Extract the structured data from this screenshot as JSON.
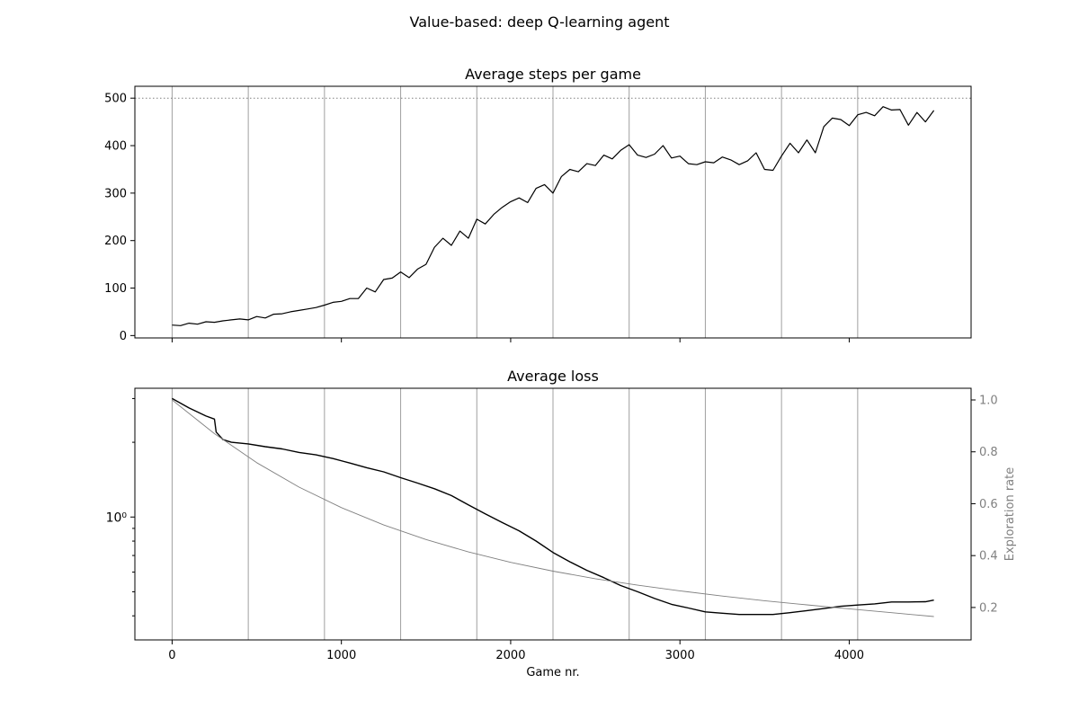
{
  "figure": {
    "suptitle": "Value-based: deep Q-learning agent"
  },
  "chart_data": [
    {
      "type": "line",
      "title": "Average steps per game",
      "xlabel": "",
      "ylabel": "",
      "xlim": [
        -220,
        4720
      ],
      "ylim": [
        -5,
        525
      ],
      "yticks": [
        0,
        100,
        200,
        300,
        400,
        500
      ],
      "vlines": [
        0,
        450,
        900,
        1350,
        1800,
        2250,
        2700,
        3150,
        3600,
        4050
      ],
      "hline": 500,
      "series": [
        {
          "color": "#000000",
          "x": [
            0,
            50,
            100,
            150,
            200,
            250,
            300,
            350,
            400,
            450,
            500,
            550,
            600,
            650,
            700,
            750,
            800,
            850,
            900,
            950,
            1000,
            1050,
            1100,
            1150,
            1200,
            1250,
            1300,
            1350,
            1400,
            1450,
            1500,
            1550,
            1600,
            1650,
            1700,
            1750,
            1800,
            1850,
            1900,
            1950,
            2000,
            2050,
            2100,
            2150,
            2200,
            2250,
            2300,
            2350,
            2400,
            2450,
            2500,
            2550,
            2600,
            2650,
            2700,
            2750,
            2800,
            2850,
            2900,
            2950,
            3000,
            3050,
            3100,
            3150,
            3200,
            3250,
            3300,
            3350,
            3400,
            3450,
            3500,
            3550,
            3600,
            3650,
            3700,
            3750,
            3800,
            3850,
            3900,
            3950,
            4000,
            4050,
            4100,
            4150,
            4200,
            4250,
            4300,
            4350,
            4400,
            4450,
            4500
          ],
          "y": [
            22,
            21,
            26,
            24,
            29,
            28,
            31,
            33,
            35,
            33,
            40,
            37,
            45,
            46,
            50,
            53,
            56,
            59,
            64,
            70,
            72,
            78,
            78,
            100,
            92,
            118,
            121,
            134,
            122,
            140,
            150,
            186,
            205,
            190,
            220,
            205,
            245,
            235,
            255,
            270,
            282,
            290,
            280,
            310,
            318,
            300,
            335,
            350,
            345,
            362,
            358,
            380,
            372,
            390,
            402,
            380,
            375,
            382,
            400,
            374,
            378,
            362,
            360,
            366,
            364,
            376,
            370,
            360,
            368,
            385,
            350,
            348,
            378,
            405,
            385,
            412,
            385,
            440,
            458,
            455,
            442,
            465,
            470,
            463,
            482,
            475,
            476,
            443,
            470,
            450,
            474
          ]
        }
      ]
    },
    {
      "type": "line",
      "title": "Average loss",
      "xlabel": "Game nr.",
      "ylabel": "",
      "yscale": "log",
      "xlim": [
        -220,
        4720
      ],
      "ylim": [
        0.32,
        3.3
      ],
      "xticks": [
        0,
        1000,
        2000,
        3000,
        4000
      ],
      "yticks": [
        1
      ],
      "ytick_labels": [
        "10⁰"
      ],
      "y2label": "Exploration rate",
      "y2lim": [
        0.075,
        1.045
      ],
      "y2ticks": [
        0.2,
        0.4,
        0.6,
        0.8,
        1.0
      ],
      "y2tick_labels": [
        "0.2",
        "0.4",
        "0.6",
        "0.8",
        "1.0"
      ],
      "vlines": [
        0,
        450,
        900,
        1350,
        1800,
        2250,
        2700,
        3150,
        3600,
        4050
      ],
      "series": [
        {
          "axis": "left",
          "color": "#000000",
          "x": [
            0,
            100,
            200,
            250,
            260,
            300,
            350,
            450,
            550,
            650,
            750,
            850,
            950,
            1050,
            1150,
            1250,
            1350,
            1450,
            1550,
            1650,
            1750,
            1850,
            1950,
            2050,
            2150,
            2250,
            2350,
            2450,
            2550,
            2650,
            2750,
            2850,
            2950,
            3050,
            3150,
            3250,
            3350,
            3450,
            3550,
            3650,
            3750,
            3850,
            3950,
            4050,
            4150,
            4250,
            4350,
            4450,
            4500
          ],
          "y": [
            3.0,
            2.75,
            2.55,
            2.48,
            2.2,
            2.05,
            2.0,
            1.97,
            1.92,
            1.88,
            1.82,
            1.78,
            1.72,
            1.65,
            1.58,
            1.52,
            1.44,
            1.37,
            1.3,
            1.22,
            1.12,
            1.03,
            0.95,
            0.88,
            0.8,
            0.72,
            0.66,
            0.61,
            0.57,
            0.53,
            0.5,
            0.47,
            0.445,
            0.43,
            0.415,
            0.41,
            0.405,
            0.405,
            0.405,
            0.412,
            0.42,
            0.428,
            0.437,
            0.442,
            0.447,
            0.455,
            0.455,
            0.456,
            0.463
          ]
        },
        {
          "axis": "right",
          "color": "#808080",
          "x": [
            0,
            250,
            500,
            750,
            1000,
            1250,
            1500,
            1750,
            2000,
            2250,
            2500,
            2750,
            3000,
            3250,
            3500,
            3750,
            4000,
            4250,
            4500
          ],
          "y": [
            1.0,
            0.87,
            0.758,
            0.664,
            0.585,
            0.518,
            0.462,
            0.414,
            0.374,
            0.34,
            0.311,
            0.286,
            0.264,
            0.244,
            0.226,
            0.21,
            0.195,
            0.18,
            0.165
          ]
        }
      ]
    }
  ]
}
